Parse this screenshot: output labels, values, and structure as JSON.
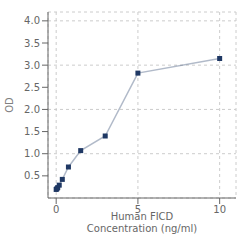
{
  "chart_data": {
    "type": "line",
    "xlabel": "Human FICD\nConcentration (ng/ml)",
    "ylabel": "OD",
    "x": [
      0,
      0.04688,
      0.09375,
      0.1875,
      0.375,
      0.75,
      1.5,
      3,
      5,
      10
    ],
    "values": [
      0.193,
      0.21,
      0.235,
      0.29,
      0.42,
      0.7,
      1.07,
      1.4,
      2.82,
      3.15
    ],
    "color": "#1f3864",
    "marker": "square",
    "xlim": [
      -0.5,
      11
    ],
    "ylim": [
      0,
      4.2
    ],
    "xticks": [
      0,
      5,
      10
    ],
    "yticks": [
      0.5,
      {
        "value": 1.0,
        "label": "1.0"
      },
      1.5,
      {
        "value": 2.0,
        "label": "2.0"
      },
      2.5,
      {
        "value": 3.0,
        "label": "3.0"
      },
      3.5,
      {
        "value": 4.0,
        "label": "4.0"
      }
    ],
    "grid": true
  }
}
